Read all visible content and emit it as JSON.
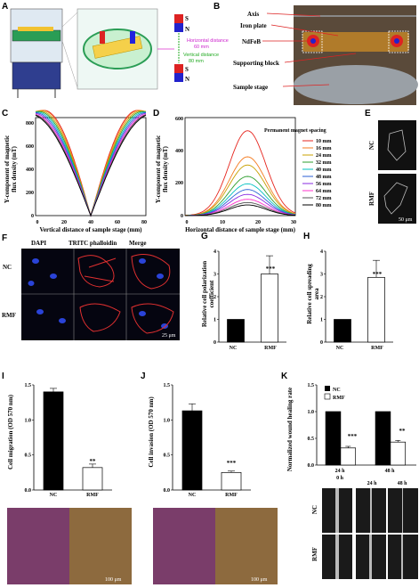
{
  "panels": {
    "A": "A",
    "B": "B",
    "C": "C",
    "D": "D",
    "E": "E",
    "F": "F",
    "G": "G",
    "H": "H",
    "I": "I",
    "J": "J",
    "K": "K"
  },
  "panel_a": {
    "s_label": "S",
    "n_label": "N",
    "horizontal_label": "Horizontal distance",
    "horizontal_value": "60 mm",
    "vertical_label": "Vertical distance",
    "vertical_value": "80 mm",
    "s2_label": "S",
    "n2_label": "N"
  },
  "panel_b": {
    "labels": [
      "Axis",
      "Iron plate",
      "NdFeB",
      "Supporting block",
      "Sample stage"
    ]
  },
  "panel_c": {
    "ylabel_1": "Y-component of magnetic",
    "ylabel_2": "flux density (mT)",
    "xlabel": "Vertical distance of sample stage (mm)",
    "xticks": [
      "0",
      "20",
      "40",
      "60",
      "80"
    ],
    "yticks": [
      "0",
      "200",
      "400",
      "600",
      "800"
    ]
  },
  "panel_d": {
    "ylabel_1": "Y-component of magnetic",
    "ylabel_2": "flux density (mT)",
    "xlabel": "Horizontal distance of sample stage (mm)",
    "xticks": [
      "0",
      "10",
      "20",
      "30"
    ],
    "yticks": [
      "0",
      "200",
      "400",
      "600"
    ],
    "legend_title": "Permanent magnet spacing",
    "legend": [
      "10 mm",
      "16 mm",
      "24 mm",
      "32 mm",
      "40 mm",
      "48 mm",
      "56 mm",
      "64 mm",
      "72 mm",
      "80 mm"
    ],
    "colors": [
      "#e6261f",
      "#f47b20",
      "#c8a000",
      "#2e9e2e",
      "#00c0c0",
      "#2a5fd6",
      "#8a2be2",
      "#ff33cc",
      "#555555",
      "#000000"
    ]
  },
  "panel_e": {
    "nc": "NC",
    "rmf": "RMF",
    "scale": "50 μm"
  },
  "panel_f": {
    "col1": "DAPI",
    "col2": "TRITC phalloidin",
    "col3": "Merge",
    "row1": "NC",
    "row2": "RMF",
    "scale": "25 μm"
  },
  "panel_g": {
    "ylabel_1": "Relative cell polarization",
    "ylabel_2": "coefficient",
    "yticks": [
      "0",
      "1",
      "2",
      "3",
      "4"
    ],
    "sig": "***"
  },
  "panel_h": {
    "ylabel_1": "Relative cell spreading",
    "ylabel_2": "area",
    "yticks": [
      "0",
      "1",
      "2",
      "3",
      "4"
    ],
    "sig": "***"
  },
  "panel_i": {
    "ylabel": "Cell migration (OD 570 nm)",
    "yticks": [
      "0.0",
      "0.5",
      "1.0",
      "1.5"
    ],
    "sig": "**",
    "scale": "100 μm"
  },
  "panel_j": {
    "ylabel": "Cell invasion (OD 570 nm)",
    "yticks": [
      "0.0",
      "0.5",
      "1.0",
      "1.5"
    ],
    "sig": "***",
    "scale": "100 μm"
  },
  "panel_k": {
    "ylabel": "Normalized wound healing rate",
    "yticks": [
      "0.0",
      "0.5",
      "1.0",
      "1.5"
    ],
    "legend": [
      "NC",
      "RMF"
    ],
    "sig1": "***",
    "sig2": "**",
    "row1": "NC",
    "row2": "RMF",
    "time_labels": [
      "0 h",
      "24 h",
      "48 h"
    ]
  },
  "chart_data": [
    {
      "type": "bar",
      "panel": "G",
      "categories": [
        "NC",
        "RMF"
      ],
      "values": [
        1.0,
        3.0
      ],
      "errors": [
        0,
        0.8
      ],
      "ylim": [
        0,
        4
      ],
      "ylabel": "Relative cell polarization coefficient"
    },
    {
      "type": "bar",
      "panel": "H",
      "categories": [
        "NC",
        "RMF"
      ],
      "values": [
        1.0,
        2.85
      ],
      "errors": [
        0,
        0.75
      ],
      "ylim": [
        0,
        4
      ],
      "ylabel": "Relative cell spreading area"
    },
    {
      "type": "bar",
      "panel": "I",
      "categories": [
        "NC",
        "RMF"
      ],
      "values": [
        1.4,
        0.32
      ],
      "errors": [
        0.05,
        0.05
      ],
      "ylim": [
        0,
        1.5
      ],
      "ylabel": "Cell migration (OD 570 nm)"
    },
    {
      "type": "bar",
      "panel": "J",
      "categories": [
        "NC",
        "RMF"
      ],
      "values": [
        1.13,
        0.25
      ],
      "errors": [
        0.1,
        0.02
      ],
      "ylim": [
        0,
        1.5
      ],
      "ylabel": "Cell invasion (OD 570 nm)"
    },
    {
      "type": "bar",
      "panel": "K",
      "categories": [
        "24 h",
        "48 h"
      ],
      "series": [
        {
          "name": "NC",
          "values": [
            1.0,
            1.0
          ],
          "errors": [
            0,
            0
          ]
        },
        {
          "name": "RMF",
          "values": [
            0.32,
            0.43
          ],
          "errors": [
            0.03,
            0.03
          ]
        }
      ],
      "ylim": [
        0,
        1.5
      ],
      "ylabel": "Normalized wound healing rate"
    },
    {
      "type": "line",
      "panel": "C",
      "x_range": [
        0,
        80
      ],
      "ylim": [
        0,
        800
      ],
      "xlabel": "Vertical distance of sample stage (mm)",
      "ylabel": "Y-component of magnetic flux density (mT)",
      "series_note": "V-shaped curves, one per magnet spacing, minimum at 40 mm",
      "peaks_left": [
        860,
        860,
        855,
        850,
        845,
        840,
        835,
        830,
        830,
        830
      ],
      "zero_near": [
        40,
        40,
        40,
        40,
        40,
        40,
        40,
        40,
        40,
        40
      ]
    },
    {
      "type": "line",
      "panel": "D",
      "x_range": [
        0,
        30
      ],
      "ylim": [
        0,
        600
      ],
      "xlabel": "Horizontal distance of sample stage (mm)",
      "ylabel": "Y-component of magnetic flux density (mT)",
      "series": [
        {
          "name": "10 mm",
          "peak": 520
        },
        {
          "name": "16 mm",
          "peak": 360
        },
        {
          "name": "24 mm",
          "peak": 310
        },
        {
          "name": "32 mm",
          "peak": 240
        },
        {
          "name": "40 mm",
          "peak": 195
        },
        {
          "name": "48 mm",
          "peak": 160
        },
        {
          "name": "56 mm",
          "peak": 130
        },
        {
          "name": "64 mm",
          "peak": 100
        },
        {
          "name": "72 mm",
          "peak": 80
        },
        {
          "name": "80 mm",
          "peak": 65
        }
      ],
      "peak_x": 17
    }
  ]
}
